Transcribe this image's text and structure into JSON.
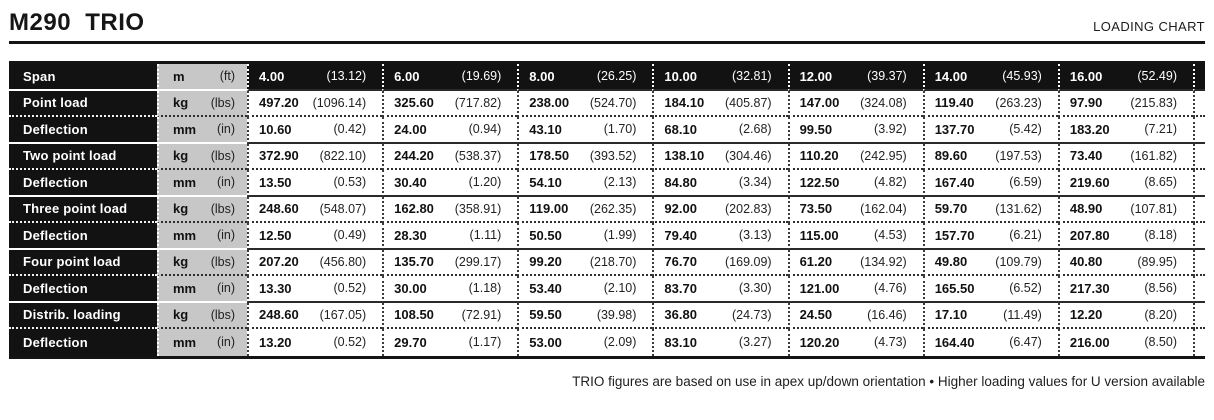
{
  "header": {
    "title": "M290 TRIO",
    "right_label": "LOADING CHART"
  },
  "table": {
    "rows": [
      {
        "label": "Span",
        "unit_metric": "m",
        "unit_imperial": "(ft)",
        "cells": [
          [
            "4.00",
            "(13.12)"
          ],
          [
            "6.00",
            "(19.69)"
          ],
          [
            "8.00",
            "(26.25)"
          ],
          [
            "10.00",
            "(32.81)"
          ],
          [
            "12.00",
            "(39.37)"
          ],
          [
            "14.00",
            "(45.93)"
          ],
          [
            "16.00",
            "(52.49)"
          ]
        ]
      },
      {
        "label": "Point load",
        "unit_metric": "kg",
        "unit_imperial": "(lbs)",
        "cells": [
          [
            "497.20",
            "(1096.14)"
          ],
          [
            "325.60",
            "(717.82)"
          ],
          [
            "238.00",
            "(524.70)"
          ],
          [
            "184.10",
            "(405.87)"
          ],
          [
            "147.00",
            "(324.08)"
          ],
          [
            "119.40",
            "(263.23)"
          ],
          [
            "97.90",
            "(215.83)"
          ]
        ]
      },
      {
        "label": "Deflection",
        "unit_metric": "mm",
        "unit_imperial": "(in)",
        "cells": [
          [
            "10.60",
            "(0.42)"
          ],
          [
            "24.00",
            "(0.94)"
          ],
          [
            "43.10",
            "(1.70)"
          ],
          [
            "68.10",
            "(2.68)"
          ],
          [
            "99.50",
            "(3.92)"
          ],
          [
            "137.70",
            "(5.42)"
          ],
          [
            "183.20",
            "(7.21)"
          ]
        ]
      },
      {
        "label": "Two point load",
        "unit_metric": "kg",
        "unit_imperial": "(lbs)",
        "cells": [
          [
            "372.90",
            "(822.10)"
          ],
          [
            "244.20",
            "(538.37)"
          ],
          [
            "178.50",
            "(393.52)"
          ],
          [
            "138.10",
            "(304.46)"
          ],
          [
            "110.20",
            "(242.95)"
          ],
          [
            "89.60",
            "(197.53)"
          ],
          [
            "73.40",
            "(161.82)"
          ]
        ]
      },
      {
        "label": "Deflection",
        "unit_metric": "mm",
        "unit_imperial": "(in)",
        "cells": [
          [
            "13.50",
            "(0.53)"
          ],
          [
            "30.40",
            "(1.20)"
          ],
          [
            "54.10",
            "(2.13)"
          ],
          [
            "84.80",
            "(3.34)"
          ],
          [
            "122.50",
            "(4.82)"
          ],
          [
            "167.40",
            "(6.59)"
          ],
          [
            "219.60",
            "(8.65)"
          ]
        ]
      },
      {
        "label": "Three point load",
        "unit_metric": "kg",
        "unit_imperial": "(lbs)",
        "cells": [
          [
            "248.60",
            "(548.07)"
          ],
          [
            "162.80",
            "(358.91)"
          ],
          [
            "119.00",
            "(262.35)"
          ],
          [
            "92.00",
            "(202.83)"
          ],
          [
            "73.50",
            "(162.04)"
          ],
          [
            "59.70",
            "(131.62)"
          ],
          [
            "48.90",
            "(107.81)"
          ]
        ]
      },
      {
        "label": "Deflection",
        "unit_metric": "mm",
        "unit_imperial": "(in)",
        "cells": [
          [
            "12.50",
            "(0.49)"
          ],
          [
            "28.30",
            "(1.11)"
          ],
          [
            "50.50",
            "(1.99)"
          ],
          [
            "79.40",
            "(3.13)"
          ],
          [
            "115.00",
            "(4.53)"
          ],
          [
            "157.70",
            "(6.21)"
          ],
          [
            "207.80",
            "(8.18)"
          ]
        ]
      },
      {
        "label": "Four point load",
        "unit_metric": "kg",
        "unit_imperial": "(lbs)",
        "cells": [
          [
            "207.20",
            "(456.80)"
          ],
          [
            "135.70",
            "(299.17)"
          ],
          [
            "99.20",
            "(218.70)"
          ],
          [
            "76.70",
            "(169.09)"
          ],
          [
            "61.20",
            "(134.92)"
          ],
          [
            "49.80",
            "(109.79)"
          ],
          [
            "40.80",
            "(89.95)"
          ]
        ]
      },
      {
        "label": "Deflection",
        "unit_metric": "mm",
        "unit_imperial": "(in)",
        "cells": [
          [
            "13.30",
            "(0.52)"
          ],
          [
            "30.00",
            "(1.18)"
          ],
          [
            "53.40",
            "(2.10)"
          ],
          [
            "83.70",
            "(3.30)"
          ],
          [
            "121.00",
            "(4.76)"
          ],
          [
            "165.50",
            "(6.52)"
          ],
          [
            "217.30",
            "(8.56)"
          ]
        ]
      },
      {
        "label": "Distrib. loading",
        "unit_metric": "kg",
        "unit_imperial": "(lbs)",
        "cells": [
          [
            "248.60",
            "(167.05)"
          ],
          [
            "108.50",
            "(72.91)"
          ],
          [
            "59.50",
            "(39.98)"
          ],
          [
            "36.80",
            "(24.73)"
          ],
          [
            "24.50",
            "(16.46)"
          ],
          [
            "17.10",
            "(11.49)"
          ],
          [
            "12.20",
            "(8.20)"
          ]
        ]
      },
      {
        "label": "Deflection",
        "unit_metric": "mm",
        "unit_imperial": "(in)",
        "cells": [
          [
            "13.20",
            "(0.52)"
          ],
          [
            "29.70",
            "(1.17)"
          ],
          [
            "53.00",
            "(2.09)"
          ],
          [
            "83.10",
            "(3.27)"
          ],
          [
            "120.20",
            "(4.73)"
          ],
          [
            "164.40",
            "(6.47)"
          ],
          [
            "216.00",
            "(8.50)"
          ]
        ]
      }
    ]
  },
  "footer": {
    "note": "TRIO figures are based on use in apex up/down orientation • Higher loading values for U version available"
  }
}
